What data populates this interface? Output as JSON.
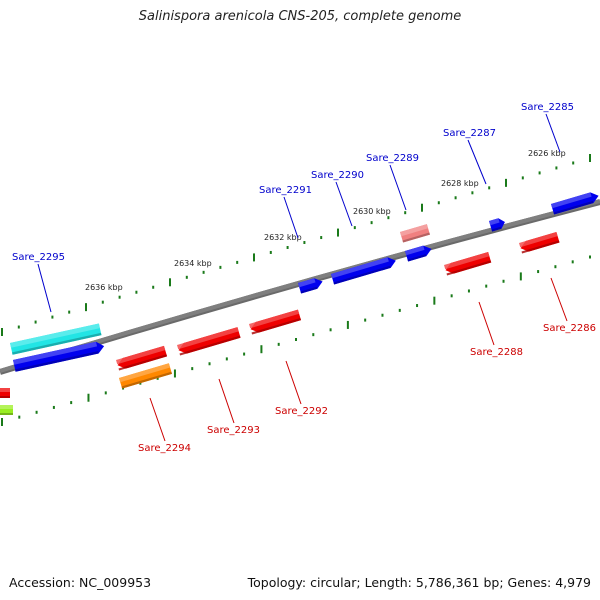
{
  "title": "Salinispora arenicola CNS-205, complete genome",
  "footer": {
    "accession": "Accession: NC_009953",
    "summary": "Topology: circular; Length: 5,786,361 bp; Genes: 4,979"
  },
  "colors": {
    "backbone": "#7f7f7f",
    "tick": "#1a7a1a",
    "label_forward": "#0000cc",
    "label_reverse": "#cc0000",
    "gene_blue": "#0000ee",
    "gene_red": "#ee0000",
    "gene_cyan": "#22e5e5",
    "gene_orange": "#ff8800",
    "gene_pink": "#f08080",
    "gene_green": "#99ee22"
  },
  "ticks": [
    {
      "label": "2626 kbp"
    },
    {
      "label": "2628 kbp"
    },
    {
      "label": "2630 kbp"
    },
    {
      "label": "2632 kbp"
    },
    {
      "label": "2634 kbp"
    },
    {
      "label": "2636 kbp"
    }
  ],
  "forward_labels": [
    "Sare_2285",
    "Sare_2287",
    "Sare_2289",
    "Sare_2290",
    "Sare_2291",
    "Sare_2295"
  ],
  "reverse_labels": [
    "Sare_2286",
    "Sare_2288",
    "Sare_2292",
    "Sare_2293",
    "Sare_2294"
  ]
}
